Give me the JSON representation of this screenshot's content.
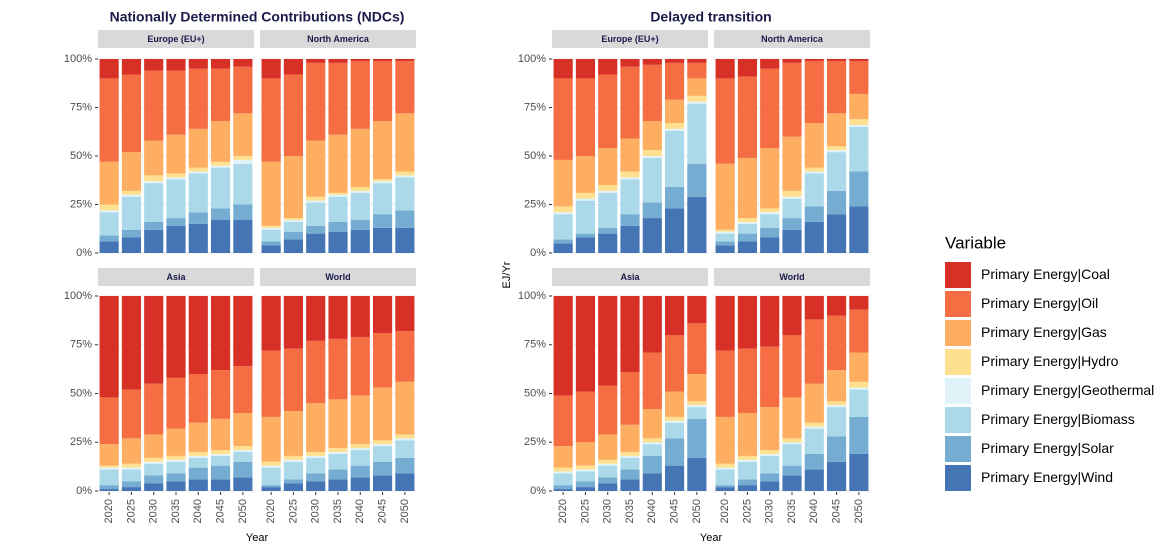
{
  "chart_data": {
    "type": "bar",
    "stacked": true,
    "legend_title": "Variable",
    "legend_position": "right",
    "y_label": "EJ/Yr",
    "x_label": "Year",
    "categories": [
      "2020",
      "2025",
      "2030",
      "2035",
      "2040",
      "2045",
      "2050"
    ],
    "ylim": [
      0,
      100
    ],
    "yticks": [
      {
        "value": 0,
        "label": "0%"
      },
      {
        "value": 25,
        "label": "25%"
      },
      {
        "value": 50,
        "label": "50%"
      },
      {
        "value": 75,
        "label": "75%"
      },
      {
        "value": 100,
        "label": "100%"
      }
    ],
    "grid": true,
    "series": [
      {
        "name": "Primary Energy|Coal",
        "color": "#d73027"
      },
      {
        "name": "Primary Energy|Oil",
        "color": "#f46d43"
      },
      {
        "name": "Primary Energy|Gas",
        "color": "#fdae61"
      },
      {
        "name": "Primary Energy|Hydro",
        "color": "#fee090"
      },
      {
        "name": "Primary Energy|Geothermal",
        "color": "#e0f3f8"
      },
      {
        "name": "Primary Energy|Biomass",
        "color": "#abd9e9"
      },
      {
        "name": "Primary Energy|Solar",
        "color": "#74add1"
      },
      {
        "name": "Primary Energy|Wind",
        "color": "#4575b4"
      }
    ],
    "groups": [
      {
        "title": "Nationally Determined Contributions (NDCs)",
        "panels": [
          {
            "title": "Europe (EU+)",
            "values": [
              [
                10,
                8,
                6,
                6,
                5,
                5,
                4
              ],
              [
                43,
                40,
                36,
                33,
                31,
                27,
                24
              ],
              [
                22,
                20,
                18,
                20,
                20,
                21,
                22
              ],
              [
                3,
                2,
                3,
                2,
                2,
                2,
                2
              ],
              [
                1,
                1,
                1,
                1,
                1,
                1,
                2
              ],
              [
                12,
                17,
                20,
                20,
                20,
                21,
                21
              ],
              [
                3,
                4,
                4,
                4,
                6,
                6,
                8
              ],
              [
                6,
                8,
                12,
                14,
                15,
                17,
                17
              ]
            ]
          },
          {
            "title": "North America",
            "values": [
              [
                10,
                8,
                2,
                2,
                1,
                1,
                1
              ],
              [
                43,
                42,
                40,
                37,
                35,
                31,
                27
              ],
              [
                33,
                32,
                29,
                30,
                30,
                30,
                30
              ],
              [
                1,
                1,
                2,
                1,
                2,
                1,
                2
              ],
              [
                1,
                1,
                1,
                1,
                1,
                1,
                1
              ],
              [
                6,
                5,
                12,
                13,
                14,
                16,
                17
              ],
              [
                2,
                4,
                4,
                5,
                5,
                7,
                9
              ],
              [
                4,
                7,
                10,
                11,
                12,
                13,
                13
              ]
            ]
          },
          {
            "title": "Asia",
            "values": [
              [
                52,
                48,
                45,
                42,
                40,
                38,
                36
              ],
              [
                24,
                25,
                26,
                26,
                25,
                25,
                24
              ],
              [
                11,
                13,
                12,
                14,
                15,
                16,
                17
              ],
              [
                1,
                2,
                2,
                2,
                2,
                2,
                2
              ],
              [
                1,
                1,
                1,
                1,
                1,
                1,
                1
              ],
              [
                8,
                6,
                6,
                6,
                5,
                5,
                5
              ],
              [
                2,
                3,
                4,
                4,
                6,
                7,
                8
              ],
              [
                1,
                2,
                4,
                5,
                6,
                6,
                7
              ]
            ]
          },
          {
            "title": "World",
            "values": [
              [
                28,
                27,
                23,
                22,
                21,
                19,
                18
              ],
              [
                34,
                32,
                32,
                31,
                30,
                28,
                26
              ],
              [
                23,
                23,
                25,
                25,
                25,
                27,
                27
              ],
              [
                2,
                2,
                2,
                2,
                2,
                2,
                2
              ],
              [
                1,
                1,
                1,
                1,
                1,
                1,
                1
              ],
              [
                9,
                9,
                8,
                8,
                8,
                8,
                9
              ],
              [
                1,
                2,
                4,
                5,
                6,
                7,
                8
              ],
              [
                2,
                4,
                5,
                6,
                7,
                8,
                9
              ]
            ]
          }
        ]
      },
      {
        "title": "Delayed transition",
        "panels": [
          {
            "title": "Europe (EU+)",
            "values": [
              [
                10,
                10,
                8,
                4,
                3,
                2,
                2
              ],
              [
                42,
                40,
                38,
                37,
                29,
                19,
                8
              ],
              [
                24,
                19,
                19,
                17,
                15,
                12,
                9
              ],
              [
                3,
                3,
                3,
                3,
                3,
                3,
                3
              ],
              [
                1,
                1,
                1,
                1,
                1,
                1,
                1
              ],
              [
                13,
                17,
                18,
                18,
                23,
                29,
                31
              ],
              [
                2,
                2,
                3,
                6,
                8,
                11,
                17
              ],
              [
                5,
                8,
                10,
                14,
                18,
                23,
                29
              ]
            ]
          },
          {
            "title": "North America",
            "values": [
              [
                10,
                9,
                5,
                2,
                1,
                1,
                1
              ],
              [
                44,
                42,
                41,
                38,
                32,
                27,
                17
              ],
              [
                34,
                31,
                31,
                28,
                23,
                17,
                13
              ],
              [
                1,
                2,
                2,
                3,
                2,
                2,
                3
              ],
              [
                1,
                1,
                1,
                1,
                1,
                1,
                1
              ],
              [
                4,
                5,
                7,
                10,
                17,
                20,
                23
              ],
              [
                2,
                4,
                5,
                6,
                8,
                12,
                18
              ],
              [
                4,
                6,
                8,
                12,
                16,
                20,
                24
              ]
            ]
          },
          {
            "title": "Asia",
            "values": [
              [
                51,
                49,
                46,
                39,
                29,
                20,
                14
              ],
              [
                26,
                26,
                25,
                27,
                29,
                29,
                26
              ],
              [
                11,
                12,
                13,
                14,
                15,
                13,
                14
              ],
              [
                2,
                2,
                2,
                2,
                2,
                2,
                2
              ],
              [
                1,
                1,
                1,
                1,
                1,
                1,
                1
              ],
              [
                6,
                5,
                6,
                6,
                6,
                8,
                6
              ],
              [
                2,
                3,
                3,
                5,
                9,
                14,
                20
              ],
              [
                1,
                2,
                4,
                6,
                9,
                13,
                17
              ]
            ]
          },
          {
            "title": "World",
            "values": [
              [
                28,
                27,
                26,
                20,
                12,
                10,
                7
              ],
              [
                34,
                33,
                31,
                32,
                33,
                28,
                22
              ],
              [
                24,
                22,
                22,
                21,
                20,
                16,
                15
              ],
              [
                2,
                2,
                2,
                2,
                2,
                2,
                3
              ],
              [
                1,
                1,
                1,
                1,
                1,
                1,
                1
              ],
              [
                8,
                9,
                9,
                11,
                13,
                15,
                14
              ],
              [
                1,
                3,
                4,
                5,
                8,
                13,
                19
              ],
              [
                2,
                3,
                5,
                8,
                11,
                15,
                19
              ]
            ]
          }
        ]
      }
    ]
  }
}
